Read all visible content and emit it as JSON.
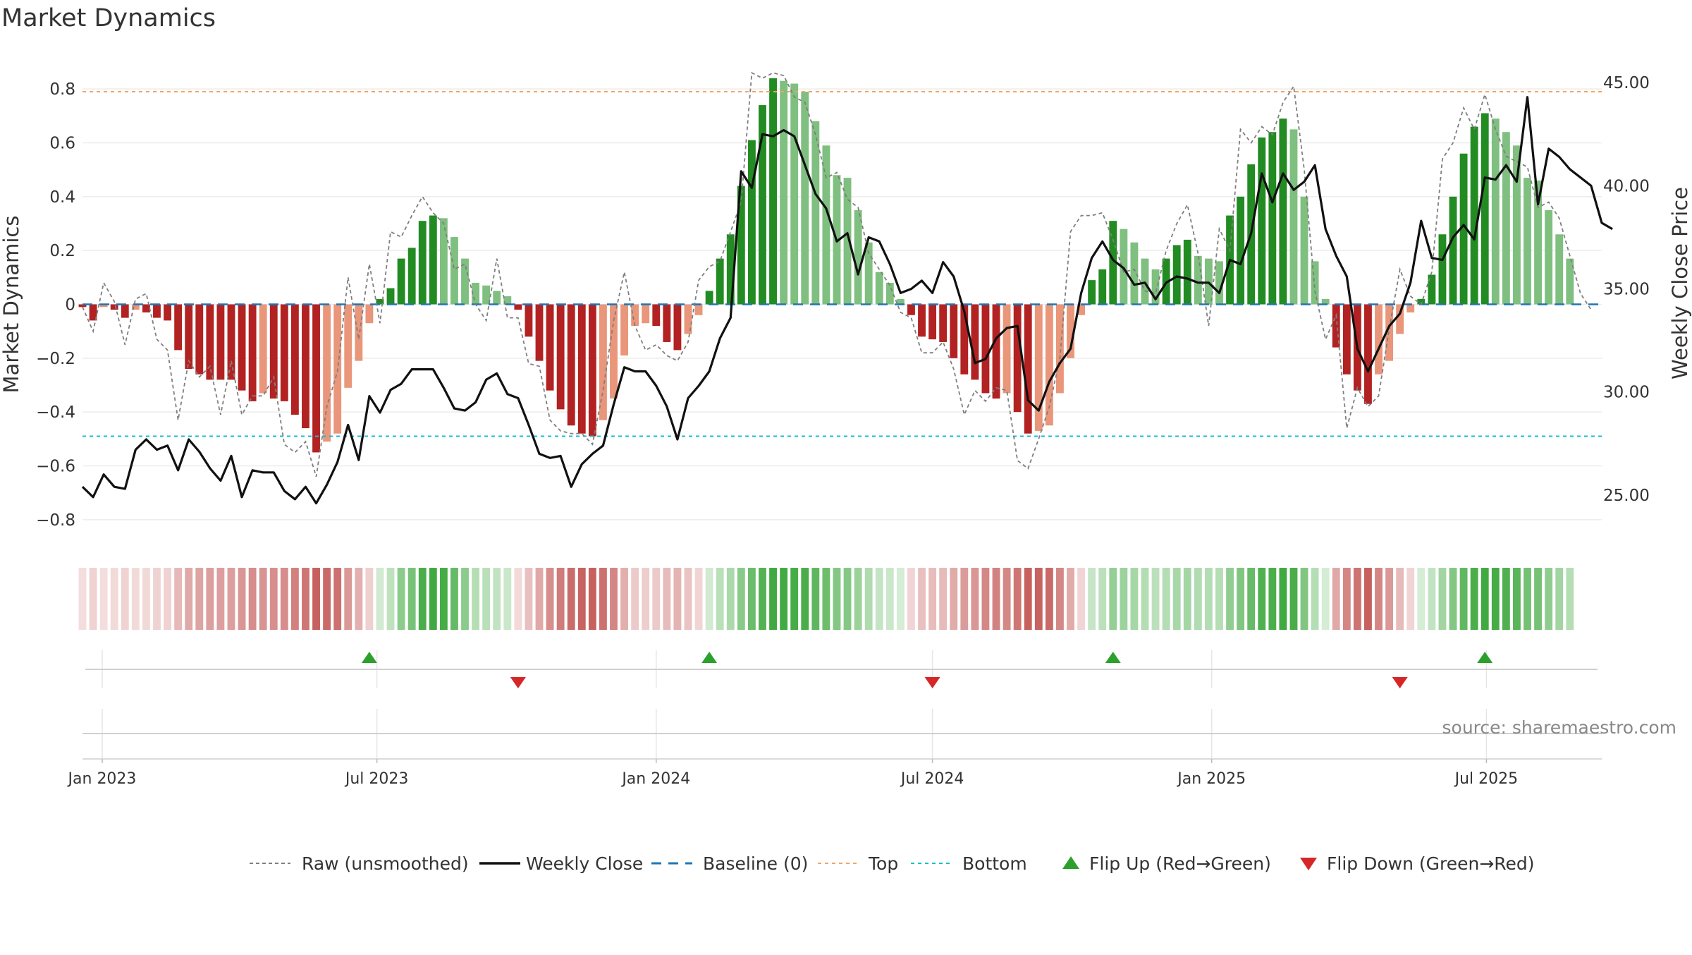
{
  "title": "Market Dynamics",
  "source": "source: sharemaestro.com",
  "colors": {
    "green_strong": "#228b22",
    "green_light": "#7fbf7f",
    "red_strong": "#b22222",
    "red_light": "#e9967a",
    "close_line": "#111111",
    "raw_line": "#7f7f7f",
    "baseline": "#1f77b4",
    "top_line": "#f4a460",
    "bottom_line": "#17becf",
    "flip_up": "#2ca02c",
    "flip_down": "#d62728"
  },
  "chart_data": {
    "type": "bar",
    "title": "Market Dynamics",
    "ylabel": "Market Dynamics",
    "y2label": "Weekly Close Price",
    "ylim": [
      -0.9,
      0.9
    ],
    "y2lim": [
      22.5,
      46.0
    ],
    "yticks": [
      -0.8,
      -0.6,
      -0.4,
      -0.2,
      0,
      0.2,
      0.4,
      0.6,
      0.8
    ],
    "y2ticks": [
      25,
      30,
      35,
      40,
      45
    ],
    "ytick_labels": [
      "−0.8",
      "−0.6",
      "−0.4",
      "−0.2",
      "0",
      "0.2",
      "0.4",
      "0.6",
      "0.8"
    ],
    "y2tick_labels": [
      "25.00",
      "30.00",
      "35.00",
      "40.00",
      "45.00"
    ],
    "x_start": "2022-12-19",
    "x_end": "2025-09-15",
    "first_week": "2022-12-19",
    "x_tick_dates": [
      "2023-01-01",
      "2023-07-01",
      "2024-01-01",
      "2024-07-01",
      "2025-01-01",
      "2025-07-01"
    ],
    "x_tick_labels": [
      "Jan 2023",
      "Jul 2023",
      "Jan 2024",
      "Jul 2024",
      "Jan 2025",
      "Jul 2025"
    ],
    "top_level": 0.79,
    "bottom_level": -0.49,
    "grid": true,
    "legend_position": "bottom",
    "bars": [
      -0.01,
      -0.06,
      -0.01,
      -0.02,
      -0.05,
      -0.02,
      -0.03,
      -0.05,
      -0.06,
      -0.17,
      -0.24,
      -0.26,
      -0.28,
      -0.28,
      -0.28,
      -0.32,
      -0.36,
      -0.33,
      -0.35,
      -0.36,
      -0.41,
      -0.46,
      -0.55,
      -0.51,
      -0.48,
      -0.31,
      -0.21,
      -0.07,
      0.02,
      0.06,
      0.17,
      0.21,
      0.31,
      0.33,
      0.32,
      0.25,
      0.17,
      0.08,
      0.07,
      0.05,
      0.03,
      -0.02,
      -0.12,
      -0.21,
      -0.32,
      -0.39,
      -0.45,
      -0.48,
      -0.49,
      -0.43,
      -0.35,
      -0.19,
      -0.08,
      -0.07,
      -0.08,
      -0.14,
      -0.17,
      -0.11,
      -0.04,
      0.05,
      0.17,
      0.26,
      0.44,
      0.61,
      0.74,
      0.84,
      0.83,
      0.82,
      0.79,
      0.68,
      0.59,
      0.48,
      0.47,
      0.35,
      0.23,
      0.12,
      0.08,
      0.02,
      -0.04,
      -0.12,
      -0.13,
      -0.14,
      -0.2,
      -0.26,
      -0.28,
      -0.33,
      -0.35,
      -0.33,
      -0.4,
      -0.48,
      -0.47,
      -0.45,
      -0.33,
      -0.2,
      -0.04,
      0.09,
      0.13,
      0.31,
      0.28,
      0.23,
      0.17,
      0.13,
      0.17,
      0.22,
      0.24,
      0.18,
      0.17,
      0.16,
      0.33,
      0.4,
      0.52,
      0.62,
      0.64,
      0.69,
      0.65,
      0.4,
      0.16,
      0.02,
      -0.16,
      -0.26,
      -0.32,
      -0.37,
      -0.26,
      -0.21,
      -0.11,
      -0.03,
      0.02,
      0.11,
      0.26,
      0.4,
      0.56,
      0.66,
      0.71,
      0.69,
      0.64,
      0.59,
      0.47,
      0.46,
      0.35,
      0.26,
      0.17
    ],
    "raw": [
      -0.01,
      -0.1,
      0.08,
      0.01,
      -0.15,
      0.02,
      0.04,
      -0.13,
      -0.17,
      -0.43,
      -0.21,
      -0.27,
      -0.23,
      -0.41,
      -0.21,
      -0.41,
      -0.34,
      -0.34,
      -0.27,
      -0.52,
      -0.55,
      -0.51,
      -0.64,
      -0.38,
      -0.25,
      0.1,
      -0.13,
      0.15,
      -0.07,
      0.27,
      0.25,
      0.33,
      0.4,
      0.34,
      0.3,
      0.13,
      0.15,
      0.0,
      -0.06,
      0.17,
      -0.05,
      -0.05,
      -0.22,
      -0.23,
      -0.43,
      -0.47,
      -0.48,
      -0.48,
      -0.52,
      -0.32,
      -0.06,
      0.12,
      -0.08,
      -0.17,
      -0.15,
      -0.19,
      -0.21,
      -0.14,
      0.09,
      0.14,
      0.16,
      0.27,
      0.38,
      0.86,
      0.84,
      0.86,
      0.85,
      0.77,
      0.75,
      0.63,
      0.47,
      0.49,
      0.39,
      0.36,
      0.19,
      0.13,
      0.07,
      -0.03,
      -0.05,
      -0.18,
      -0.18,
      -0.14,
      -0.24,
      -0.41,
      -0.32,
      -0.36,
      -0.31,
      -0.32,
      -0.58,
      -0.61,
      -0.5,
      -0.38,
      -0.2,
      0.27,
      0.33,
      0.33,
      0.34,
      0.24,
      0.12,
      0.13,
      0.05,
      0.04,
      0.2,
      0.3,
      0.37,
      0.19,
      -0.08,
      0.28,
      0.2,
      0.65,
      0.6,
      0.66,
      0.63,
      0.75,
      0.81,
      0.5,
      0.05,
      -0.13,
      -0.04,
      -0.46,
      -0.31,
      -0.38,
      -0.34,
      -0.09,
      0.13,
      0.03,
      0.0,
      0.12,
      0.54,
      0.6,
      0.73,
      0.65,
      0.78,
      0.65,
      0.55,
      0.53,
      0.51,
      0.36,
      0.38,
      0.32,
      0.18,
      0.04,
      -0.02
    ],
    "weekly_close": [
      25.4,
      24.9,
      26.0,
      25.4,
      25.3,
      27.2,
      27.7,
      27.2,
      27.4,
      26.2,
      27.7,
      27.1,
      26.3,
      25.7,
      26.9,
      24.9,
      26.2,
      26.1,
      26.1,
      25.2,
      24.8,
      25.4,
      24.6,
      25.5,
      26.6,
      28.4,
      26.7,
      29.8,
      29.0,
      30.1,
      30.4,
      31.1,
      31.1,
      31.1,
      30.2,
      29.2,
      29.1,
      29.5,
      30.6,
      30.9,
      29.9,
      29.7,
      28.4,
      27.0,
      26.8,
      26.9,
      25.4,
      26.5,
      27.0,
      27.4,
      29.4,
      31.2,
      31.0,
      31.0,
      30.3,
      29.3,
      27.7,
      29.7,
      30.3,
      31.0,
      32.6,
      33.6,
      40.7,
      39.9,
      42.5,
      42.4,
      42.7,
      42.4,
      41.0,
      39.6,
      38.9,
      37.3,
      37.7,
      35.7,
      37.5,
      37.3,
      36.2,
      34.8,
      35.0,
      35.4,
      34.8,
      36.3,
      35.6,
      33.9,
      31.4,
      31.6,
      32.6,
      33.1,
      33.2,
      29.6,
      29.1,
      30.5,
      31.4,
      32.1,
      34.8,
      36.5,
      37.3,
      36.4,
      36.0,
      35.2,
      35.3,
      34.5,
      35.3,
      35.6,
      35.5,
      35.3,
      35.3,
      34.8,
      36.4,
      36.2,
      37.7,
      40.6,
      39.2,
      40.6,
      39.8,
      40.2,
      41.0,
      37.9,
      36.6,
      35.6,
      32.1,
      31.0,
      32.1,
      33.2,
      33.8,
      35.3,
      38.3,
      36.5,
      36.4,
      37.5,
      38.1,
      37.4,
      40.4,
      40.3,
      41.0,
      40.2,
      44.3,
      39.1,
      41.8,
      41.4,
      40.8,
      40.4,
      40.0,
      38.2,
      37.9
    ],
    "flip_up_weeks": [
      27,
      59,
      97,
      132
    ],
    "flip_down_weeks": [
      41,
      80,
      124
    ],
    "ribbon_series_name": "Regime",
    "legend": [
      {
        "label": "Raw (unsmoothed)",
        "icon": "dashed-grey-line"
      },
      {
        "label": "Weekly Close",
        "icon": "black-line"
      },
      {
        "label": "Baseline (0)",
        "icon": "dashed-blue-line"
      },
      {
        "label": "Top",
        "icon": "dotted-orange-line"
      },
      {
        "label": "Bottom",
        "icon": "dotted-cyan-line"
      },
      {
        "label": "Flip Up (Red→Green)",
        "icon": "green-up-triangle"
      },
      {
        "label": "Flip Down (Green→Red)",
        "icon": "red-down-triangle"
      }
    ]
  }
}
